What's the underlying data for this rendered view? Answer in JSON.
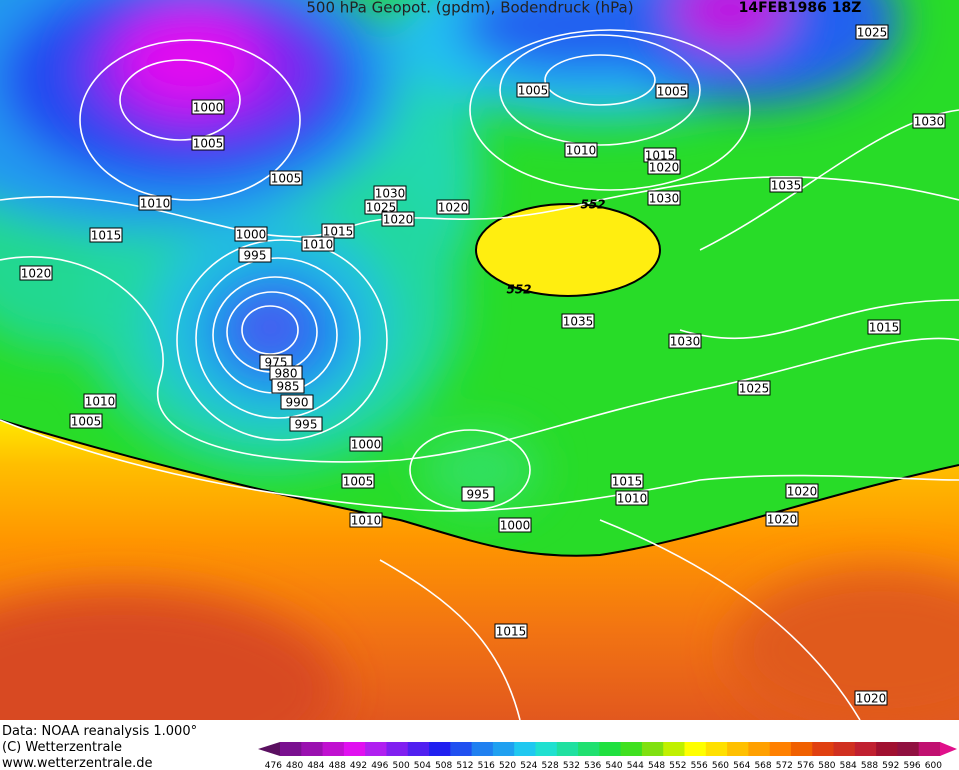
{
  "header": {
    "title": "500 hPa Geopot. (gpdm), Bodendruck (hPa)",
    "date": "14FEB1986 18Z"
  },
  "contour_labels": {
    "height": [
      552,
      552
    ],
    "pressure": [
      1025,
      1030,
      1000,
      1005,
      1005,
      1005,
      1010,
      1015,
      1020,
      1005,
      1010,
      1030,
      1025,
      1020,
      1020,
      1030,
      1035,
      1000,
      1015,
      1010,
      995,
      1015,
      1020,
      1035,
      1030,
      1015,
      975,
      980,
      985,
      990,
      995,
      1010,
      1005,
      1025,
      1000,
      1005,
      995,
      1015,
      1010,
      1020,
      1010,
      1000,
      1020,
      1015,
      1020
    ]
  },
  "footer": {
    "data_source": "Data: NOAA reanalysis 1.000°",
    "copyright": "(C) Wetterzentrale",
    "website": "www.wetterzentrale.de"
  },
  "scale": {
    "labels": [
      476,
      480,
      484,
      488,
      492,
      496,
      500,
      504,
      508,
      512,
      516,
      520,
      524,
      528,
      532,
      536,
      540,
      544,
      548,
      552,
      556,
      560,
      564,
      568,
      572,
      576,
      580,
      584,
      588,
      592,
      596,
      600
    ]
  }
}
